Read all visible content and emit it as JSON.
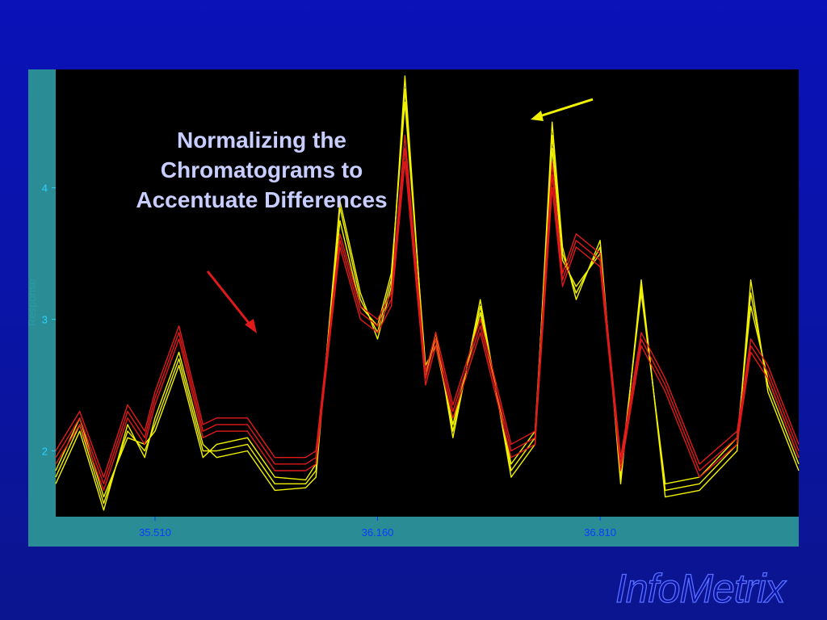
{
  "slide": {
    "title_lines": [
      "Normalizing the",
      "Chromatograms to",
      "Accentuate Differences"
    ],
    "logo": "InfoMetrix"
  },
  "chart_data": {
    "type": "line",
    "title": "Normalizing the Chromatograms to Accentuate Differences",
    "xlabel": "",
    "ylabel": "Response",
    "x_tick_labels": [
      "35.510",
      "36.160",
      "36.810"
    ],
    "x_ticks": [
      35.51,
      36.16,
      36.81
    ],
    "y_ticks": [
      2,
      3,
      4
    ],
    "xlim": [
      35.22,
      37.39
    ],
    "ylim": [
      1.5,
      4.9
    ],
    "grid": false,
    "colors": {
      "plot_bg": "#000000",
      "frame": "#2a8c95",
      "group_a": "#f2f200",
      "group_b": "#e01a1a"
    },
    "annotations": [
      {
        "type": "arrow",
        "color": "#e01a1a",
        "points_to": "peak near 35.51"
      },
      {
        "type": "arrow",
        "color": "#f2f200",
        "points_to": "peak near 36.24"
      }
    ],
    "x": [
      35.22,
      35.29,
      35.36,
      35.43,
      35.48,
      35.51,
      35.58,
      35.65,
      35.69,
      35.78,
      35.86,
      35.95,
      35.98,
      36.05,
      36.11,
      36.16,
      36.2,
      36.24,
      36.3,
      36.33,
      36.38,
      36.46,
      36.55,
      36.62,
      36.67,
      36.7,
      36.74,
      36.81,
      36.87,
      36.93,
      37.0,
      37.1,
      37.21,
      37.25,
      37.3,
      37.39
    ],
    "series": [
      {
        "name": "",
        "group": "yellow",
        "values": [
          1.8,
          2.2,
          1.6,
          2.15,
          2.0,
          2.2,
          2.7,
          2.0,
          2.0,
          2.05,
          1.75,
          1.75,
          1.85,
          3.85,
          3.15,
          2.9,
          3.3,
          4.75,
          2.6,
          2.85,
          2.15,
          3.1,
          1.85,
          2.1,
          4.4,
          3.5,
          3.2,
          3.55,
          1.8,
          3.25,
          1.7,
          1.75,
          2.05,
          3.2,
          2.5,
          1.9
        ]
      },
      {
        "name": "",
        "group": "yellow",
        "values": [
          1.75,
          2.15,
          1.55,
          2.2,
          1.95,
          2.25,
          2.75,
          2.05,
          1.95,
          2.0,
          1.7,
          1.72,
          1.8,
          3.9,
          3.2,
          2.85,
          3.25,
          4.85,
          2.55,
          2.9,
          2.1,
          3.15,
          1.8,
          2.05,
          4.5,
          3.55,
          3.15,
          3.6,
          1.75,
          3.3,
          1.65,
          1.7,
          2.0,
          3.3,
          2.45,
          1.85
        ]
      },
      {
        "name": "",
        "group": "yellow",
        "values": [
          1.85,
          2.25,
          1.65,
          2.1,
          2.05,
          2.15,
          2.65,
          1.95,
          2.05,
          2.1,
          1.8,
          1.78,
          1.9,
          3.75,
          3.1,
          2.95,
          3.35,
          4.65,
          2.65,
          2.8,
          2.2,
          3.05,
          1.9,
          2.15,
          4.3,
          3.45,
          3.25,
          3.5,
          1.85,
          3.2,
          1.75,
          1.8,
          2.1,
          3.1,
          2.55,
          1.95
        ]
      },
      {
        "name": "",
        "group": "red",
        "values": [
          1.95,
          2.25,
          1.75,
          2.3,
          2.1,
          2.4,
          2.9,
          2.15,
          2.2,
          2.2,
          1.9,
          1.9,
          1.95,
          3.6,
          3.05,
          2.95,
          3.15,
          4.3,
          2.55,
          2.85,
          2.3,
          2.95,
          2.0,
          2.1,
          4.1,
          3.3,
          3.6,
          3.45,
          1.9,
          2.85,
          2.5,
          1.85,
          2.1,
          2.8,
          2.6,
          2.0
        ]
      },
      {
        "name": "",
        "group": "red",
        "values": [
          2.0,
          2.3,
          1.8,
          2.35,
          2.15,
          2.45,
          2.95,
          2.2,
          2.25,
          2.25,
          1.95,
          1.95,
          2.0,
          3.65,
          3.1,
          3.0,
          3.2,
          4.4,
          2.6,
          2.9,
          2.35,
          3.0,
          2.05,
          2.15,
          4.2,
          3.35,
          3.65,
          3.5,
          1.95,
          2.9,
          2.55,
          1.9,
          2.15,
          2.85,
          2.65,
          2.05
        ]
      },
      {
        "name": "",
        "group": "red",
        "values": [
          1.9,
          2.2,
          1.7,
          2.25,
          2.05,
          2.35,
          2.85,
          2.1,
          2.15,
          2.15,
          1.85,
          1.85,
          1.9,
          3.55,
          3.0,
          2.9,
          3.1,
          4.2,
          2.5,
          2.8,
          2.25,
          2.9,
          1.95,
          2.05,
          4.0,
          3.25,
          3.55,
          3.4,
          1.85,
          2.8,
          2.45,
          1.8,
          2.05,
          2.75,
          2.55,
          1.95
        ]
      }
    ]
  }
}
